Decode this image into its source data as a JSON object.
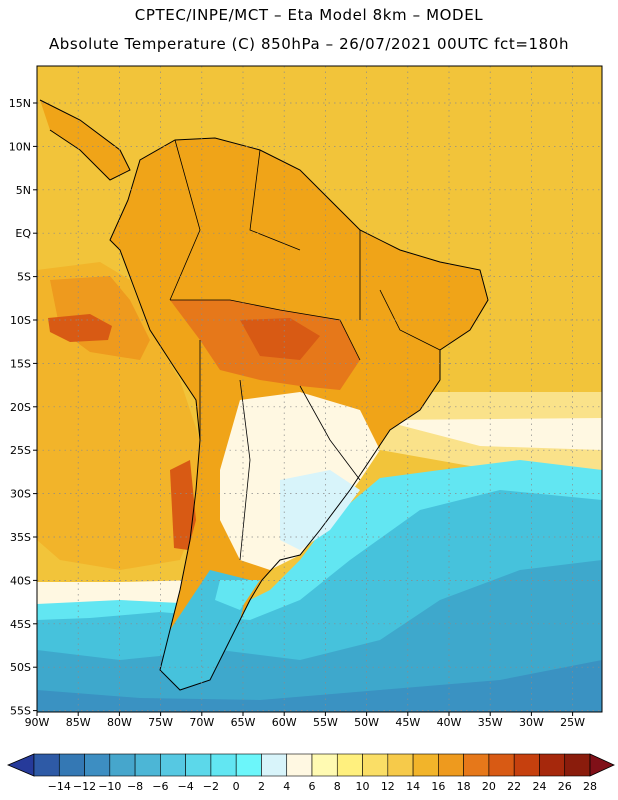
{
  "header": {
    "line1": "CPTEC/INPE/MCT –  Eta Model 8km – MODEL",
    "line2": "Absolute Temperature (C) 850hPa – 26/07/2021 00UTC fct=180h"
  },
  "map": {
    "lat_labels": [
      "15N",
      "10N",
      "5N",
      "EQ",
      "5S",
      "10S",
      "15S",
      "20S",
      "25S",
      "30S",
      "35S",
      "40S",
      "45S",
      "50S",
      "55S"
    ],
    "lon_labels": [
      "90W",
      "85W",
      "80W",
      "75W",
      "70W",
      "65W",
      "60W",
      "55W",
      "50W",
      "45W",
      "40W",
      "35W",
      "30W",
      "25W"
    ],
    "colors": {
      "ocean_warm": "#f2c43a",
      "land_warm": "#f0a418",
      "hot": "#e0620c",
      "cold": "#41c0dc"
    }
  },
  "colorbar": {
    "labels": [
      "−14",
      "−12",
      "−10",
      "−8",
      "−6",
      "−4",
      "−2",
      "0",
      "2",
      "4",
      "6",
      "8",
      "10",
      "12",
      "14",
      "16",
      "18",
      "20",
      "22",
      "24",
      "26",
      "28"
    ],
    "colors": [
      "#263a9a",
      "#2e5aa6",
      "#3478b4",
      "#3d8ec2",
      "#46a6cc",
      "#4cb6d6",
      "#56c8e2",
      "#5cd8ea",
      "#62e6f2",
      "#6cf6fa",
      "#d8f4fa",
      "#fff8e2",
      "#fffab2",
      "#fff07e",
      "#fade66",
      "#f6ca4a",
      "#f2b42a",
      "#ee9a1e",
      "#e6781a",
      "#d85a14",
      "#c6400e",
      "#a6280c",
      "#8a1c0c",
      "#801018"
    ]
  }
}
